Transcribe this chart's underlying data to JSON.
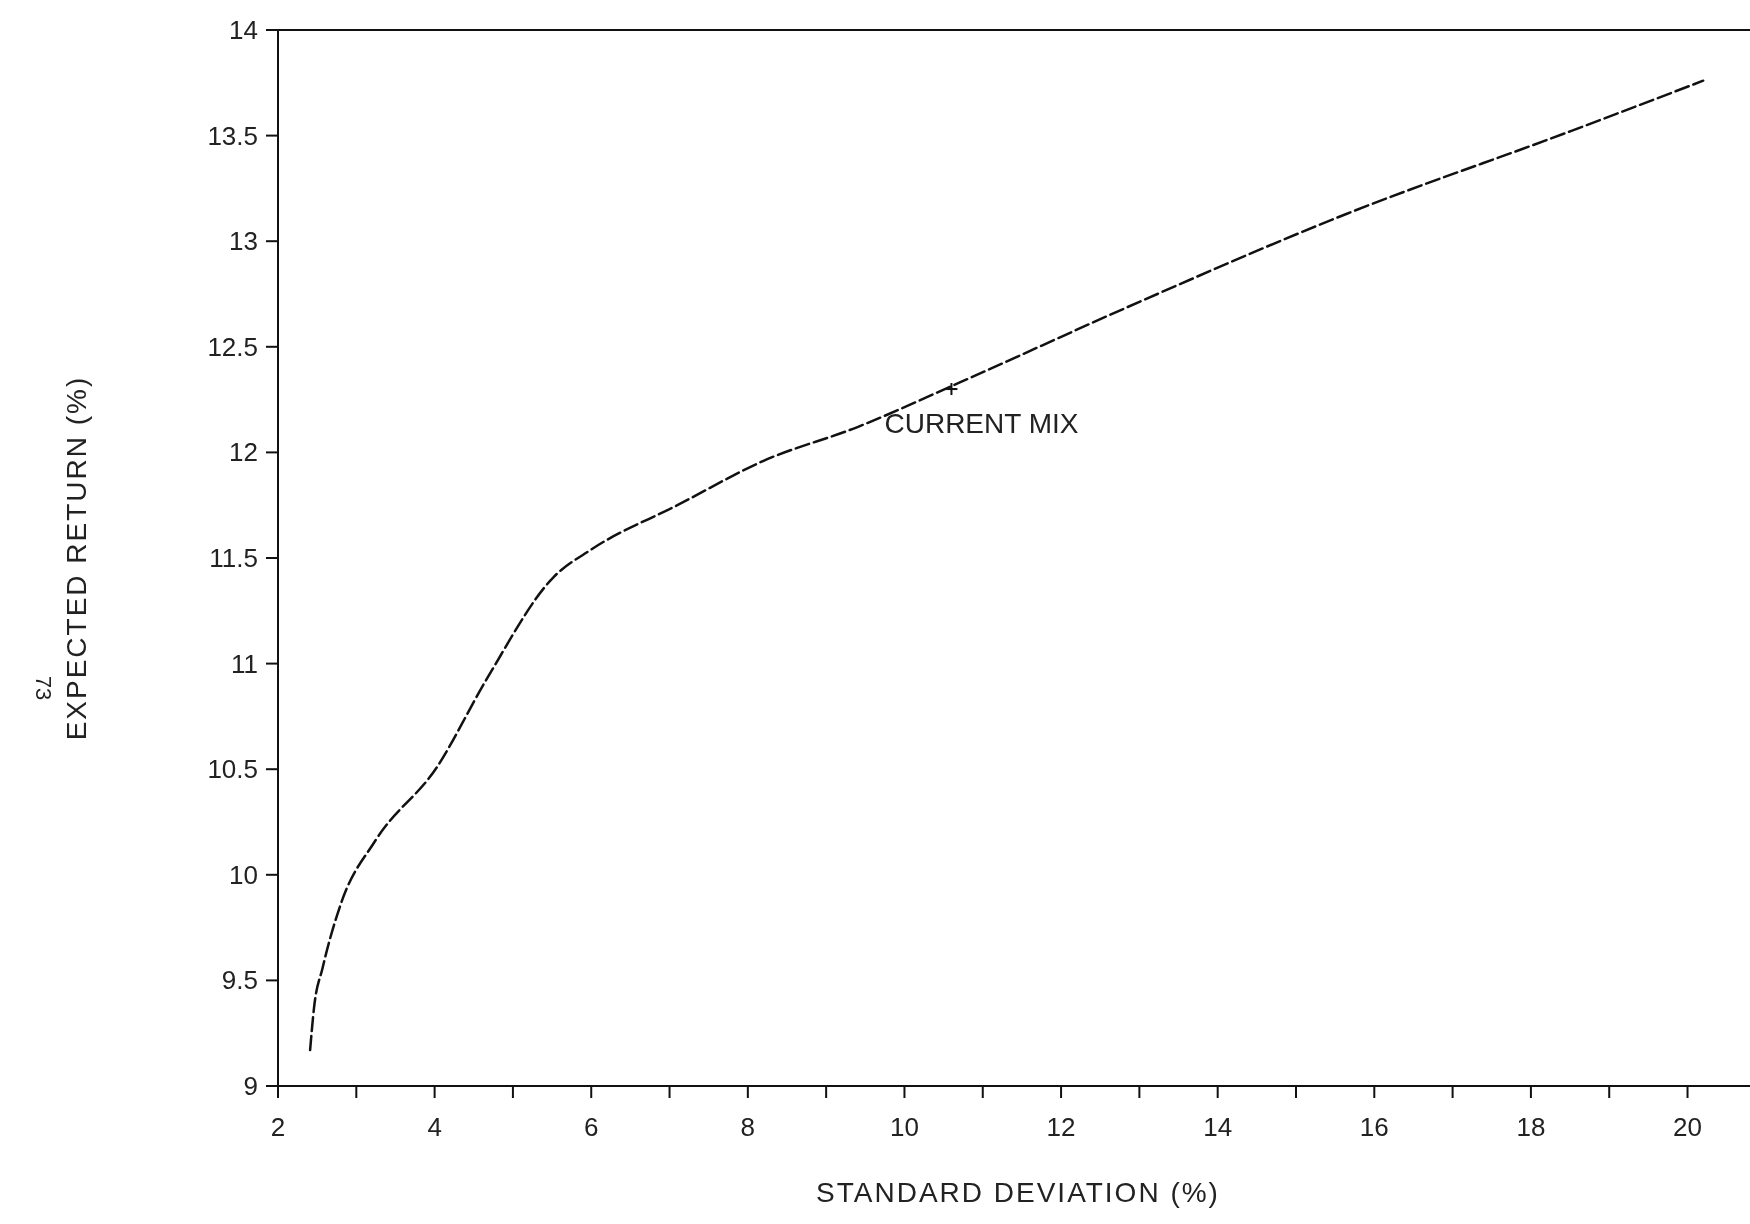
{
  "chart_data": {
    "type": "line",
    "xlabel": "STANDARD DEVIATION (%)",
    "ylabel": "EXPECTED RETURN (%)",
    "series": [
      {
        "color": "#111111",
        "x": [
          2.41,
          2.46,
          2.57,
          2.81,
          3.24,
          4.03,
          4.67,
          5.52,
          6.0,
          7.1,
          8.2,
          9.4,
          10.7,
          12.8,
          15.65,
          18.5,
          20.2
        ],
        "values": [
          9.17,
          9.37,
          9.56,
          9.87,
          10.16,
          10.51,
          10.93,
          11.41,
          11.54,
          11.75,
          11.96,
          12.12,
          12.33,
          12.68,
          13.13,
          13.52,
          13.76
        ]
      }
    ],
    "line_style": "dashed",
    "marker": "none",
    "grid": false,
    "xlim": [
      2,
      20.9
    ],
    "xticks": [
      2,
      {
        "value": 3,
        "label": null
      },
      4,
      {
        "value": 5,
        "label": null
      },
      6,
      {
        "value": 7,
        "label": null
      },
      8,
      {
        "value": 9,
        "label": null
      },
      10,
      {
        "value": 11,
        "label": null
      },
      12,
      {
        "value": 13,
        "label": null
      },
      14,
      {
        "value": 15,
        "label": null
      },
      16,
      {
        "value": 17,
        "label": null
      },
      18,
      {
        "value": 19,
        "label": null
      },
      20
    ],
    "ylim": [
      9,
      14
    ],
    "yticks": [
      9,
      9.5,
      10,
      10.5,
      11,
      11.5,
      12,
      12.5,
      13,
      13.5,
      14
    ],
    "annotations": [
      {
        "text": "CURRENT MIX",
        "x": 10.6,
        "y": 12.3
      },
      "73"
    ]
  }
}
